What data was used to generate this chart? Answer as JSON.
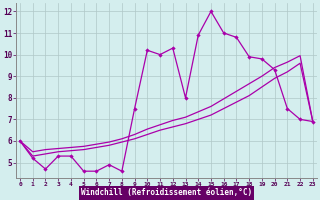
{
  "xlabel": "Windchill (Refroidissement éolien,°C)",
  "background_color": "#d4eeee",
  "grid_color": "#b0c8c8",
  "line_color": "#aa00aa",
  "xlabel_bg": "#660066",
  "xlabel_fg": "#ffffff",
  "x": [
    0,
    1,
    2,
    3,
    4,
    5,
    6,
    7,
    8,
    9,
    10,
    11,
    12,
    13,
    14,
    15,
    16,
    17,
    18,
    19,
    20,
    21,
    22,
    23
  ],
  "y_main": [
    6.0,
    5.2,
    4.7,
    5.3,
    5.3,
    4.6,
    4.6,
    4.9,
    4.6,
    7.5,
    10.2,
    10.0,
    10.3,
    8.0,
    10.9,
    12.0,
    11.0,
    10.8,
    9.9,
    9.8,
    9.3,
    7.5,
    7.0,
    6.9
  ],
  "y_line1": [
    6.0,
    5.3,
    5.4,
    5.5,
    5.55,
    5.6,
    5.7,
    5.8,
    5.95,
    6.1,
    6.3,
    6.5,
    6.65,
    6.8,
    7.0,
    7.2,
    7.5,
    7.8,
    8.1,
    8.5,
    8.9,
    9.2,
    9.6,
    6.9
  ],
  "y_line2": [
    6.0,
    5.5,
    5.6,
    5.65,
    5.7,
    5.75,
    5.85,
    5.95,
    6.1,
    6.3,
    6.55,
    6.75,
    6.95,
    7.1,
    7.35,
    7.6,
    7.95,
    8.3,
    8.65,
    9.0,
    9.4,
    9.65,
    9.95,
    6.9
  ],
  "ylim": [
    4.3,
    12.4
  ],
  "xlim": [
    -0.3,
    23.3
  ],
  "yticks": [
    5,
    6,
    7,
    8,
    9,
    10,
    11,
    12
  ],
  "xticks": [
    0,
    1,
    2,
    3,
    4,
    5,
    6,
    7,
    8,
    9,
    10,
    11,
    12,
    13,
    14,
    15,
    16,
    17,
    18,
    19,
    20,
    21,
    22,
    23
  ]
}
